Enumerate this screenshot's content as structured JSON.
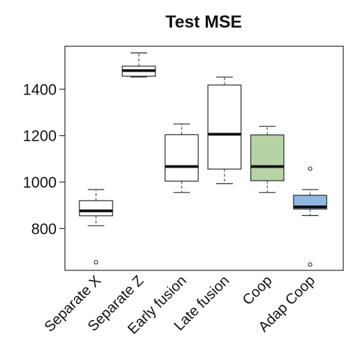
{
  "chart_data": {
    "type": "boxplot",
    "title": "Test MSE",
    "xlabel": "",
    "ylabel": "",
    "ylim": [
      620,
      1585
    ],
    "yticks": [
      800,
      1000,
      1200,
      1400
    ],
    "grid": false,
    "legend": "none",
    "categories": [
      "Separate X",
      "Separate Z",
      "Early fusion",
      "Late fusion",
      "Coop",
      "Adap Coop"
    ],
    "boxes": [
      {
        "category": "Separate X",
        "whisker_low": 812,
        "q1": 855,
        "median": 876,
        "q3": 920,
        "whisker_high": 968,
        "outliers": [
          655
        ],
        "fill": "#ffffff"
      },
      {
        "category": "Separate Z",
        "whisker_low": 1452,
        "q1": 1456,
        "median": 1480,
        "q3": 1499,
        "whisker_high": 1556,
        "outliers": [],
        "fill": "#ffffff"
      },
      {
        "category": "Early fusion",
        "whisker_low": 955,
        "q1": 1004,
        "median": 1067,
        "q3": 1204,
        "whisker_high": 1250,
        "outliers": [],
        "fill": "#ffffff"
      },
      {
        "category": "Late fusion",
        "whisker_low": 993,
        "q1": 1056,
        "median": 1206,
        "q3": 1418,
        "whisker_high": 1452,
        "outliers": [],
        "fill": "#ffffff"
      },
      {
        "category": "Coop",
        "whisker_low": 955,
        "q1": 1006,
        "median": 1067,
        "q3": 1203,
        "whisker_high": 1240,
        "outliers": [],
        "fill": "#b5d3a5"
      },
      {
        "category": "Adap Coop",
        "whisker_low": 856,
        "q1": 884,
        "median": 893,
        "q3": 943,
        "whisker_high": 968,
        "outliers": [
          1058,
          645
        ],
        "fill": "#8fb8e1"
      }
    ]
  }
}
